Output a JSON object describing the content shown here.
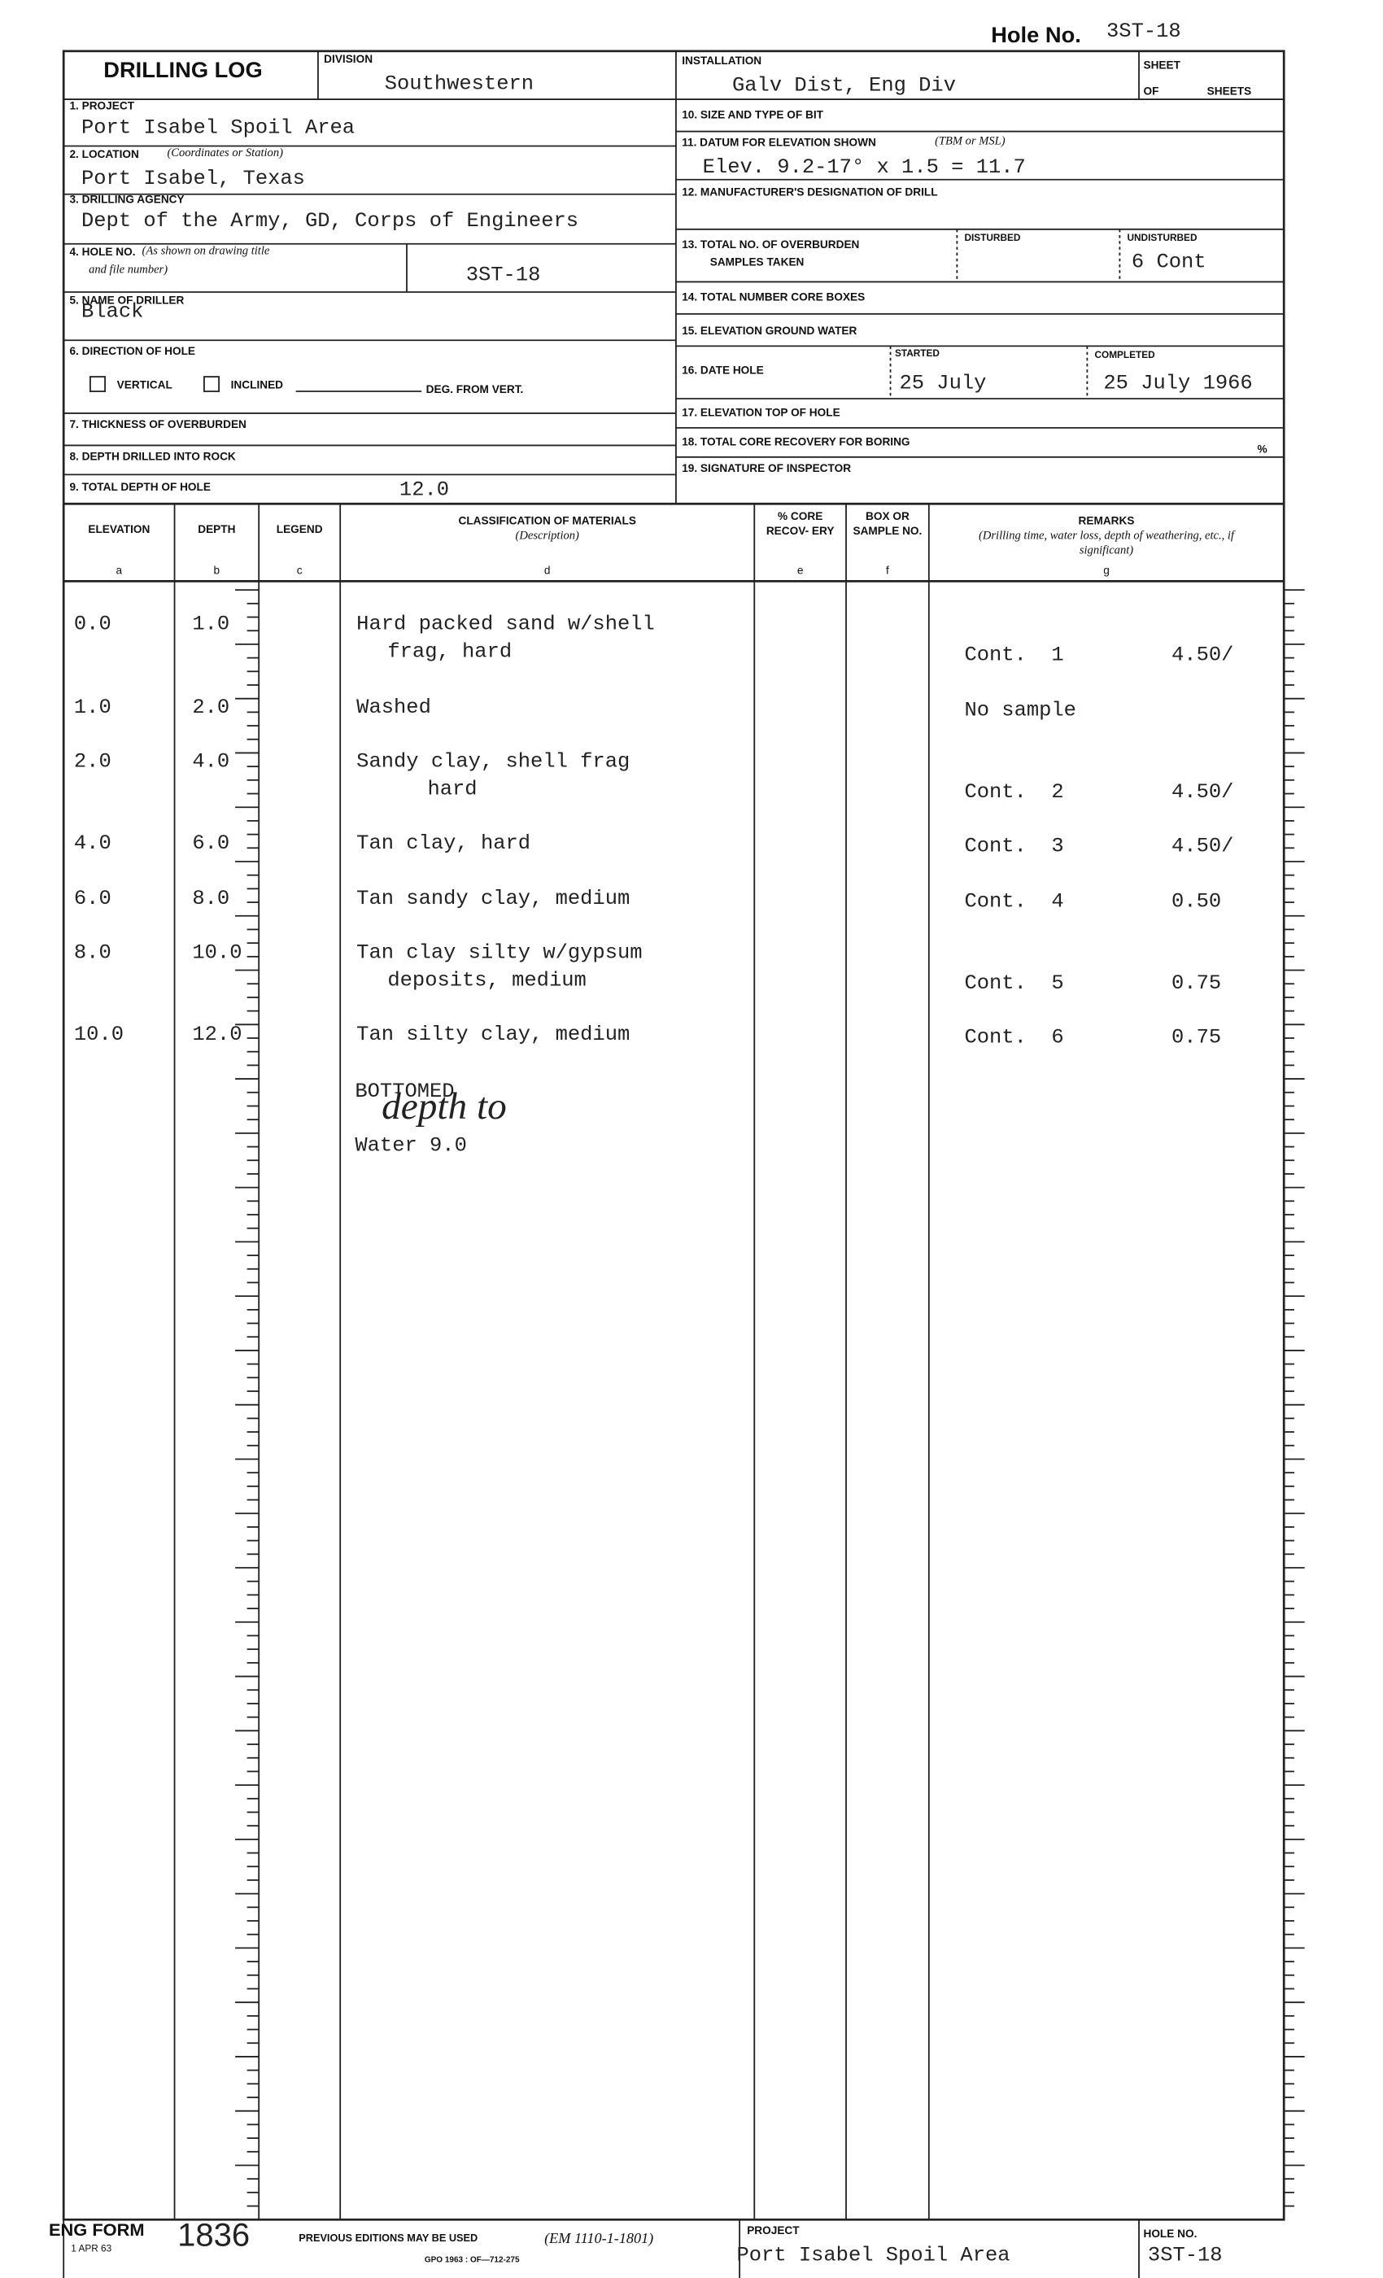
{
  "header": {
    "hole_no_label": "Hole No.",
    "hole_no": "3ST-18"
  },
  "form": {
    "title": "DRILLING LOG",
    "division": {
      "label": "DIVISION",
      "value": "Southwestern"
    },
    "installation": {
      "label": "INSTALLATION",
      "value": "Galv Dist, Eng Div"
    },
    "sheet": {
      "label": "SHEET",
      "of": "OF",
      "sheets": "SHEETS"
    },
    "project": {
      "label": "1. PROJECT",
      "value": "Port Isabel Spoil Area"
    },
    "location": {
      "label": "2. LOCATION",
      "label_note": "(Coordinates or Station)",
      "value": "Port Isabel, Texas"
    },
    "agency": {
      "label": "3. DRILLING AGENCY",
      "value": "Dept of the Army, GD, Corps of Engineers"
    },
    "hole_no": {
      "label": "4. HOLE NO.",
      "label_note": "(As shown on drawing title",
      "label_note2": "and file number)",
      "value": "3ST-18"
    },
    "driller": {
      "label": "5. NAME OF DRILLER",
      "value": "Black"
    },
    "direction": {
      "label": "6. DIRECTION OF HOLE",
      "vertical": "VERTICAL",
      "inclined": "INCLINED",
      "deg": "DEG. FROM VERT."
    },
    "overburden": {
      "label": "7. THICKNESS OF OVERBURDEN"
    },
    "rock": {
      "label": "8. DEPTH DRILLED INTO ROCK"
    },
    "total_depth": {
      "label": "9. TOTAL DEPTH OF HOLE",
      "value": "12.0"
    },
    "bit": {
      "label": "10. SIZE AND TYPE OF BIT"
    },
    "datum": {
      "label": "11. DATUM FOR ELEVATION SHOWN",
      "label_note": "(TBM or MSL)",
      "value": "Elev. 9.2-17° x 1.5 = 11.7"
    },
    "manufacturer": {
      "label": "12. MANUFACTURER'S DESIGNATION OF DRILL"
    },
    "samples": {
      "label": "13. TOTAL NO. OF OVERBURDEN",
      "label2": "SAMPLES TAKEN",
      "disturbed": "DISTURBED",
      "undisturbed": "UNDISTURBED",
      "undisturbed_value": "6 Cont"
    },
    "core_boxes": {
      "label": "14. TOTAL NUMBER CORE BOXES"
    },
    "ground_water": {
      "label": "15. ELEVATION GROUND WATER"
    },
    "date": {
      "label": "16. DATE HOLE",
      "started": "STARTED",
      "started_value": "25 July",
      "completed": "COMPLETED",
      "completed_value": "25 July 1966"
    },
    "top_elev": {
      "label": "17. ELEVATION TOP OF HOLE"
    },
    "recovery": {
      "label": "18. TOTAL CORE RECOVERY FOR BORING",
      "unit": "%"
    },
    "inspector": {
      "label": "19. SIGNATURE OF INSPECTOR"
    }
  },
  "table": {
    "columns": [
      {
        "name": "ELEVATION",
        "letter": "a"
      },
      {
        "name": "DEPTH",
        "letter": "b"
      },
      {
        "name": "LEGEND",
        "letter": "c"
      },
      {
        "name": "CLASSIFICATION OF MATERIALS",
        "note": "(Description)",
        "letter": "d"
      },
      {
        "name": "% CORE RECOV- ERY",
        "letter": "e"
      },
      {
        "name": "BOX OR SAMPLE NO.",
        "letter": "f"
      },
      {
        "name": "REMARKS",
        "note": "(Drilling time, water loss, depth of weathering, etc., if significant)",
        "letter": "g"
      }
    ],
    "rows": [
      {
        "elevation": "0.0",
        "depth": "1.0",
        "description": [
          "Hard packed sand w/shell",
          "frag, hard"
        ],
        "remark": "Cont.  1",
        "remark_value": "4.50/"
      },
      {
        "elevation": "1.0",
        "depth": "2.0",
        "description": [
          "Washed"
        ],
        "remark": "No sample",
        "remark_value": ""
      },
      {
        "elevation": "2.0",
        "depth": "4.0",
        "description": [
          "Sandy clay, shell frag",
          "hard"
        ],
        "remark": "Cont.  2",
        "remark_value": "4.50/"
      },
      {
        "elevation": "4.0",
        "depth": "6.0",
        "description": [
          "Tan clay, hard"
        ],
        "remark": "Cont.  3",
        "remark_value": "4.50/"
      },
      {
        "elevation": "6.0",
        "depth": "8.0",
        "description": [
          "Tan sandy clay, medium"
        ],
        "remark": "Cont.  4",
        "remark_value": "0.50"
      },
      {
        "elevation": "8.0",
        "depth": "10.0",
        "description": [
          "Tan clay silty w/gypsum",
          "deposits, medium"
        ],
        "remark": "Cont.  5",
        "remark_value": "0.75"
      },
      {
        "elevation": "10.0",
        "depth": "12.0",
        "description": [
          "Tan silty clay, medium"
        ],
        "remark": "Cont.  6",
        "remark_value": "0.75"
      }
    ],
    "note": {
      "typed": "BOTTOMED",
      "handwritten": "depth to",
      "typed2": "Water 9.0"
    }
  },
  "footer": {
    "form": "ENG FORM",
    "form_no": "1836",
    "date": "1 APR 63",
    "previous": "PREVIOUS EDITIONS MAY BE USED",
    "em": "(EM 1110-1-1801)",
    "gpo": "GPO 1963 : OF—712-275",
    "project_label": "PROJECT",
    "project": "Port Isabel Spoil Area",
    "hole_label": "HOLE NO.",
    "hole": "3ST-18"
  }
}
